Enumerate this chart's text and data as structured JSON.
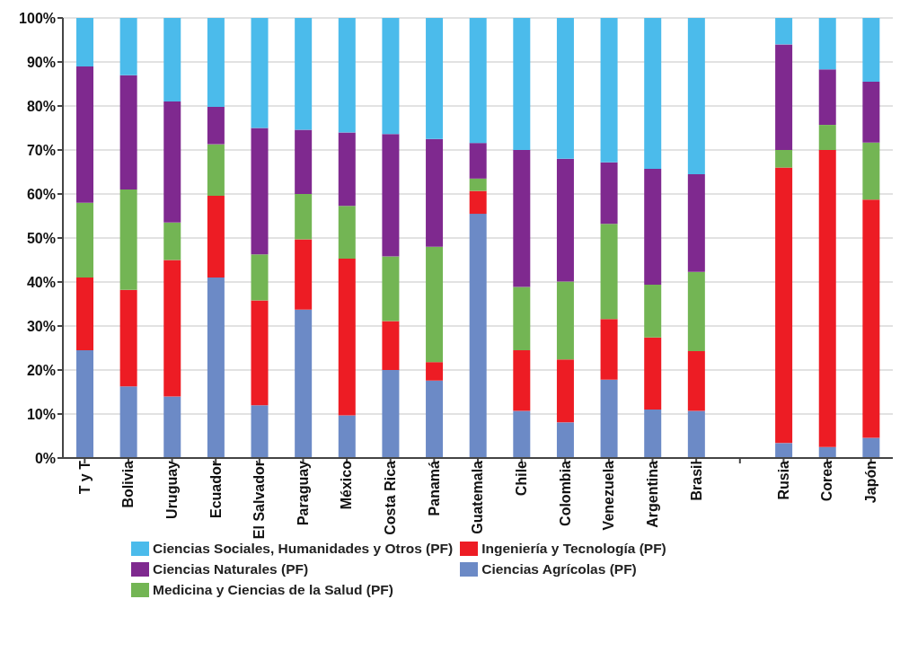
{
  "chart_data": {
    "type": "bar",
    "stacked": true,
    "categories": [
      "T y T",
      "Bolivia",
      "Uruguay",
      "Ecuador",
      "El Salvador",
      "Paraguay",
      "México",
      "Costa Rica",
      "Panamá",
      "Guatemala",
      "Chile",
      "Colombia",
      "Venezuela",
      "Argentina",
      "Brasil",
      null,
      "Rusia",
      "Corea",
      "Japón"
    ],
    "series": [
      {
        "name": "Ciencias Agrícolas (PF)",
        "color": "#6c8ac6",
        "values": [
          24.5,
          16.3,
          14,
          41,
          12,
          33.7,
          9.7,
          20,
          17.6,
          55.5,
          10.7,
          8.1,
          17.8,
          11,
          10.7,
          null,
          3.4,
          2.5,
          4.6
        ]
      },
      {
        "name": "Ingeniería y Tecnología (PF)",
        "color": "#ed1c24",
        "values": [
          16.5,
          21.9,
          31,
          18.6,
          23.8,
          16,
          35.6,
          11.1,
          4.2,
          5.2,
          13.8,
          14.3,
          13.8,
          16.4,
          13.6,
          null,
          62.6,
          67.5,
          54.1
        ]
      },
      {
        "name": "Medicina y Ciencias de la Salud (PF)",
        "color": "#73b554",
        "values": [
          17,
          22.8,
          8.5,
          11.7,
          10.5,
          10.3,
          12,
          14.7,
          26.2,
          2.8,
          14.4,
          17.7,
          21.6,
          12,
          18,
          null,
          4,
          5.7,
          13
        ]
      },
      {
        "name": "Ciencias Naturales (PF)",
        "color": "#7f298f",
        "values": [
          31,
          26,
          27.5,
          8.5,
          28.7,
          14.6,
          16.7,
          27.8,
          24.5,
          8.1,
          31.1,
          27.9,
          14,
          26.3,
          22.2,
          null,
          24,
          12.6,
          13.8
        ]
      },
      {
        "name": "Ciencias Sociales, Humanidades y Otros (PF)",
        "color": "#4bbbeb",
        "values": [
          11,
          13,
          19,
          20.2,
          25,
          25.4,
          26,
          26.4,
          27.5,
          28.4,
          30,
          32,
          32.8,
          34.3,
          35.5,
          null,
          6,
          11.7,
          14.5
        ]
      }
    ],
    "ylim": [
      0,
      100
    ],
    "yticks": [
      {
        "value": 0,
        "label": "0%"
      },
      {
        "value": 10,
        "label": "10%"
      },
      {
        "value": 20,
        "label": "20%"
      },
      {
        "value": 30,
        "label": "30%"
      },
      {
        "value": 40,
        "label": "40%"
      },
      {
        "value": 50,
        "label": "50%"
      },
      {
        "value": 60,
        "label": "60%"
      },
      {
        "value": 70,
        "label": "70%"
      },
      {
        "value": 80,
        "label": "80%"
      },
      {
        "value": 90,
        "label": "90%"
      },
      {
        "value": 100,
        "label": "100%"
      }
    ],
    "grid": "y",
    "legend": "bottom"
  }
}
